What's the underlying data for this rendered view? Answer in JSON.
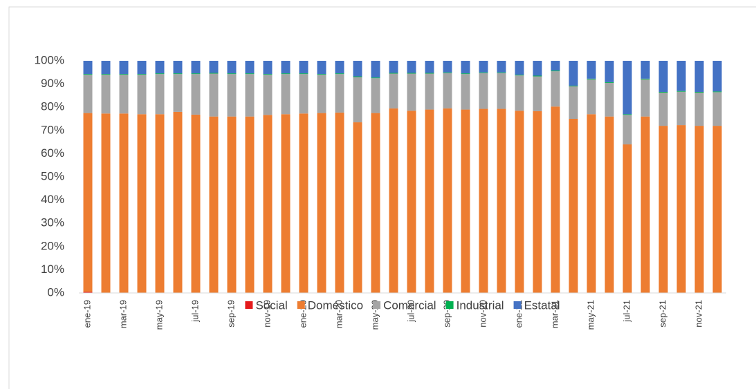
{
  "chart_data": {
    "type": "stacked_bar",
    "categories": [
      "ene-19",
      null,
      "mar-19",
      null,
      "may-19",
      null,
      "jul-19",
      null,
      "sep-19",
      null,
      "nov-19",
      null,
      "ene-20",
      null,
      "mar-20",
      null,
      "may-20",
      null,
      "jul-20",
      null,
      "sep-20",
      null,
      "nov-20",
      null,
      "ene-21",
      null,
      "mar-21",
      null,
      "may-21",
      null,
      "jul-21",
      null,
      "sep-21",
      null,
      "nov-21",
      null
    ],
    "series": [
      {
        "name": "Social",
        "color": "#e41a1c",
        "values": [
          0.5,
          0.1,
          0.1,
          0.1,
          0.1,
          0.1,
          0.1,
          0.1,
          0.1,
          0.1,
          0.1,
          0.1,
          0.1,
          0.1,
          0.1,
          0.1,
          0.1,
          0.1,
          0.1,
          0.1,
          0.1,
          0.1,
          0.1,
          0.1,
          0.1,
          0.1,
          0.1,
          0.1,
          0.1,
          0.1,
          0.1,
          0.1,
          0.1,
          0.1,
          0.1,
          0.1
        ]
      },
      {
        "name": "Doméstico",
        "color": "#ed7d31",
        "values": [
          77.0,
          77.2,
          77.2,
          76.9,
          76.9,
          77.9,
          76.7,
          75.9,
          75.9,
          75.9,
          76.6,
          76.9,
          77.2,
          77.4,
          77.6,
          73.4,
          77.4,
          79.4,
          78.4,
          78.9,
          79.4,
          78.9,
          79.2,
          79.2,
          78.4,
          78.2,
          80.2,
          74.9,
          76.9,
          75.9,
          63.9,
          75.9,
          71.9,
          72.2,
          71.9,
          71.9
        ]
      },
      {
        "name": "Comercial",
        "color": "#a5a5a5",
        "values": [
          16.5,
          16.7,
          16.7,
          17,
          17.3,
          16.3,
          17.5,
          18.5,
          18.3,
          18.3,
          17.3,
          17.3,
          17,
          16.5,
          16.6,
          19.5,
          15,
          15,
          16,
          15.5,
          15.2,
          15.3,
          15.4,
          15.4,
          15.2,
          15,
          15.2,
          14,
          15,
          14.5,
          12.7,
          16,
          14.3,
          14.4,
          14.3,
          14.5
        ]
      },
      {
        "name": "Industrial",
        "color": "#00b050",
        "values": [
          0.3,
          0.3,
          0.3,
          0.3,
          0.3,
          0.3,
          0.3,
          0.3,
          0.3,
          0.3,
          0.3,
          0.3,
          0.3,
          0.3,
          0.3,
          0.3,
          0.3,
          0.3,
          0.3,
          0.3,
          0.3,
          0.3,
          0.3,
          0.3,
          0.3,
          0.3,
          0.3,
          0.3,
          0.3,
          0.3,
          0.3,
          0.3,
          0.3,
          0.3,
          0.3,
          0.3
        ]
      },
      {
        "name": "Estatal",
        "color": "#4472c4",
        "values": [
          5.7,
          5.7,
          5.7,
          5.7,
          5.4,
          5.4,
          5.4,
          5.2,
          5.4,
          5.4,
          5.7,
          5.4,
          5.4,
          5.7,
          5.4,
          6.7,
          7.2,
          5.2,
          5.2,
          5.2,
          5,
          5.4,
          5,
          5,
          6,
          6.4,
          4.2,
          10.7,
          7.7,
          9.2,
          23,
          7.7,
          13.4,
          13,
          13.4,
          13.2
        ]
      }
    ],
    "ylim": [
      0,
      100
    ],
    "yticks": [
      {
        "value": 0,
        "label": "0%"
      },
      {
        "value": 10,
        "label": "10%"
      },
      {
        "value": 20,
        "label": "20%"
      },
      {
        "value": 30,
        "label": "30%"
      },
      {
        "value": 40,
        "label": "40%"
      },
      {
        "value": 50,
        "label": "50%"
      },
      {
        "value": 60,
        "label": "60%"
      },
      {
        "value": 70,
        "label": "70%"
      },
      {
        "value": 80,
        "label": "80%"
      },
      {
        "value": 90,
        "label": "90%"
      },
      {
        "value": 100,
        "label": "100%"
      }
    ],
    "legend": "bottom"
  }
}
